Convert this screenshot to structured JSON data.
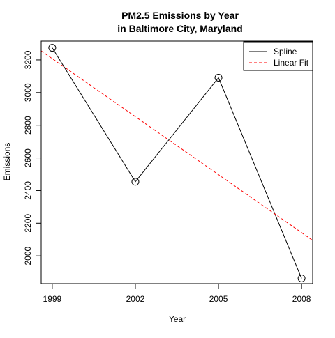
{
  "chart_data": {
    "type": "line",
    "title": [
      "PM2.5 Emissions by Year",
      "in Baltimore City, Maryland"
    ],
    "xlabel": "Year",
    "ylabel": "Emissions",
    "x_ticks": [
      1999,
      2002,
      2005,
      2008
    ],
    "y_ticks": [
      2000,
      2200,
      2400,
      2600,
      2800,
      3000,
      3200
    ],
    "xlim": [
      1998.6,
      2008.4
    ],
    "ylim": [
      1830,
      3315
    ],
    "grid": false,
    "legend_position": "top-right",
    "series": [
      {
        "name": "Spline",
        "style": "solid",
        "color": "#000000",
        "markers": "open-circle",
        "x": [
          1999,
          2002,
          2005,
          2008
        ],
        "y": [
          3274,
          2454,
          3091,
          1862
        ]
      },
      {
        "name": "Linear Fit",
        "style": "dashed",
        "color": "#ff0000",
        "x": [
          1998.6,
          2008.4
        ],
        "y": [
          3255,
          2095
        ]
      }
    ]
  }
}
